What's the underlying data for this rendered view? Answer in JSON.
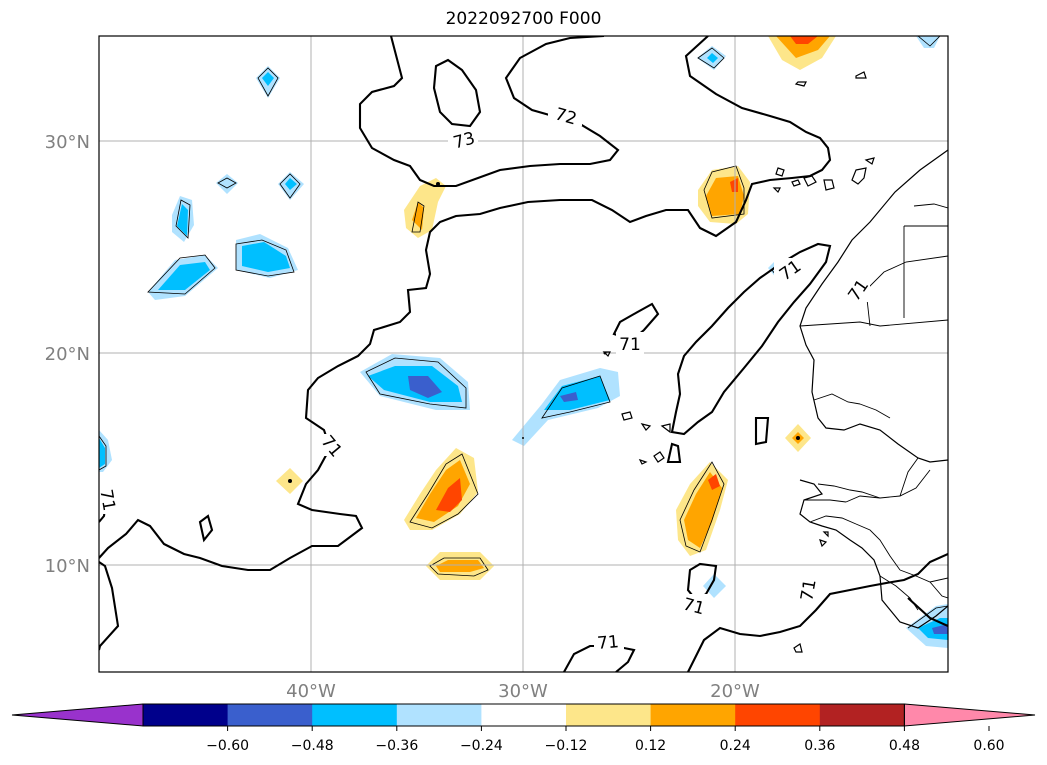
{
  "title": "2022092700 F000",
  "map": {
    "latitude_labels": [
      "30°N",
      "20°N",
      "10°N"
    ],
    "longitude_labels": [
      "40°W",
      "30°W",
      "20°W"
    ],
    "contour_labels": [
      "73",
      "72",
      "71",
      "71",
      "71",
      "71",
      "71",
      "71",
      "71",
      "71"
    ],
    "contour_color": "#000000",
    "grid_color": "#b0b0b0"
  },
  "colorbar": {
    "ticks": [
      "−0.60",
      "−0.48",
      "−0.36",
      "−0.24",
      "−0.12",
      "0.12",
      "0.24",
      "0.36",
      "0.48",
      "0.60"
    ],
    "colors": [
      "#9932cc",
      "#00008b",
      "#3a5fcd",
      "#00bfff",
      "#b0e2ff",
      "#ffffff",
      "#fde68a",
      "#ffa500",
      "#ff4500",
      "#b22222",
      "#ff88aa"
    ],
    "extend": "both"
  }
}
